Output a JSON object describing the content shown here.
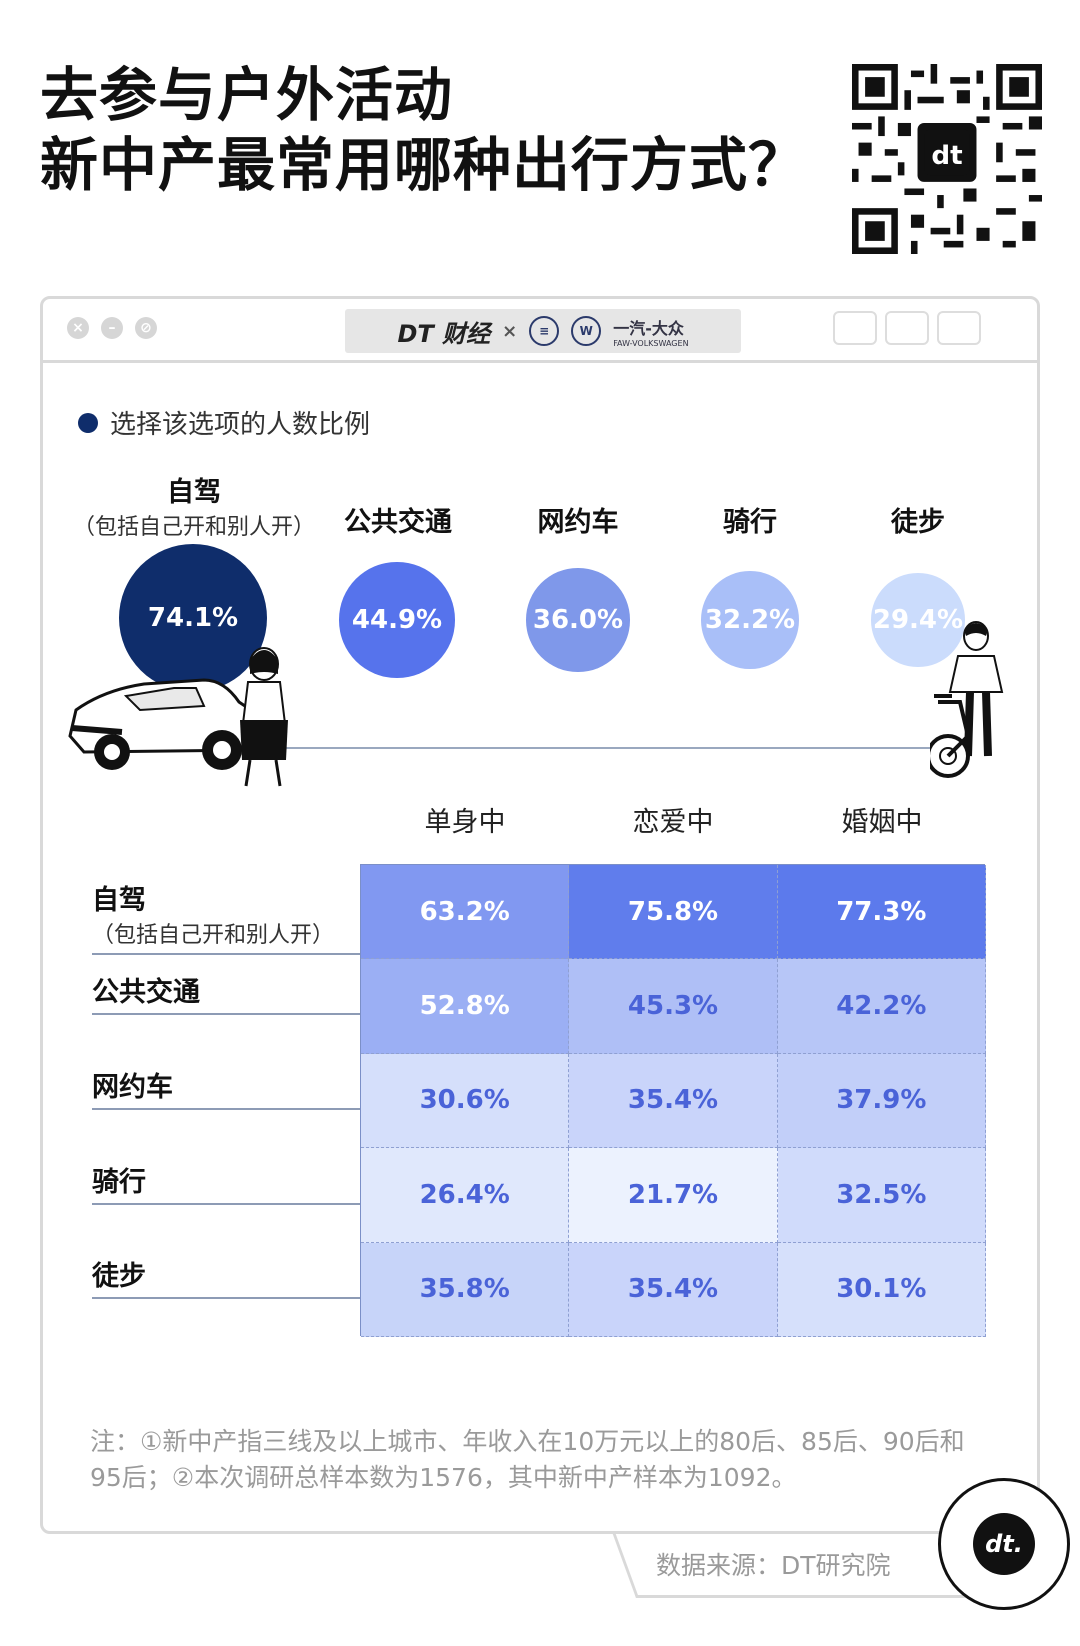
{
  "title": {
    "line1": "去参与户外活动",
    "line2": "新中产最常用哪种出行方式？"
  },
  "brand": {
    "dt": "DT 财经",
    "x": "×",
    "faw": "一汽-大众",
    "faw_en": "FAW-VOLKSWAGEN",
    "badge": "dt."
  },
  "legend": {
    "label": "选择该选项的人数比例",
    "color": "#0f2d6b"
  },
  "chart_data": [
    {
      "type": "bubble",
      "categories": [
        "自驾",
        "公共交通",
        "网约车",
        "骑行",
        "徒步"
      ],
      "category_notes": [
        "（包括自己开和别人开）",
        "",
        "",
        "",
        ""
      ],
      "values": [
        74.1,
        44.9,
        36.0,
        32.2,
        29.4
      ],
      "labels": [
        "74.1%",
        "44.9%",
        "36.0%",
        "32.2%",
        "29.4%"
      ],
      "colors": [
        "#0f2d6b",
        "#5673ec",
        "#7f98ea",
        "#a9bff8",
        "#cbdcfc"
      ]
    },
    {
      "type": "heatmap",
      "rows": [
        "自驾",
        "公共交通",
        "网约车",
        "骑行",
        "徒步"
      ],
      "row_notes": [
        "（包括自己开和别人开）",
        "",
        "",
        "",
        ""
      ],
      "columns": [
        "单身中",
        "恋爱中",
        "婚姻中"
      ],
      "values": [
        [
          63.2,
          75.8,
          77.3
        ],
        [
          52.8,
          45.3,
          42.2
        ],
        [
          30.6,
          35.4,
          37.9
        ],
        [
          26.4,
          21.7,
          32.5
        ],
        [
          35.8,
          35.4,
          30.1
        ]
      ],
      "labels": [
        [
          "63.2%",
          "75.8%",
          "77.3%"
        ],
        [
          "52.8%",
          "45.3%",
          "42.2%"
        ],
        [
          "30.6%",
          "35.4%",
          "37.9%"
        ],
        [
          "26.4%",
          "21.7%",
          "32.5%"
        ],
        [
          "35.8%",
          "35.4%",
          "30.1%"
        ]
      ]
    }
  ],
  "note": "注：①新中产指三线及以上城市、年收入在10万元以上的80后、85后、90后和95后；②本次调研总样本数为1576，其中新中产样本为1092。",
  "source": "数据来源：DT研究院"
}
